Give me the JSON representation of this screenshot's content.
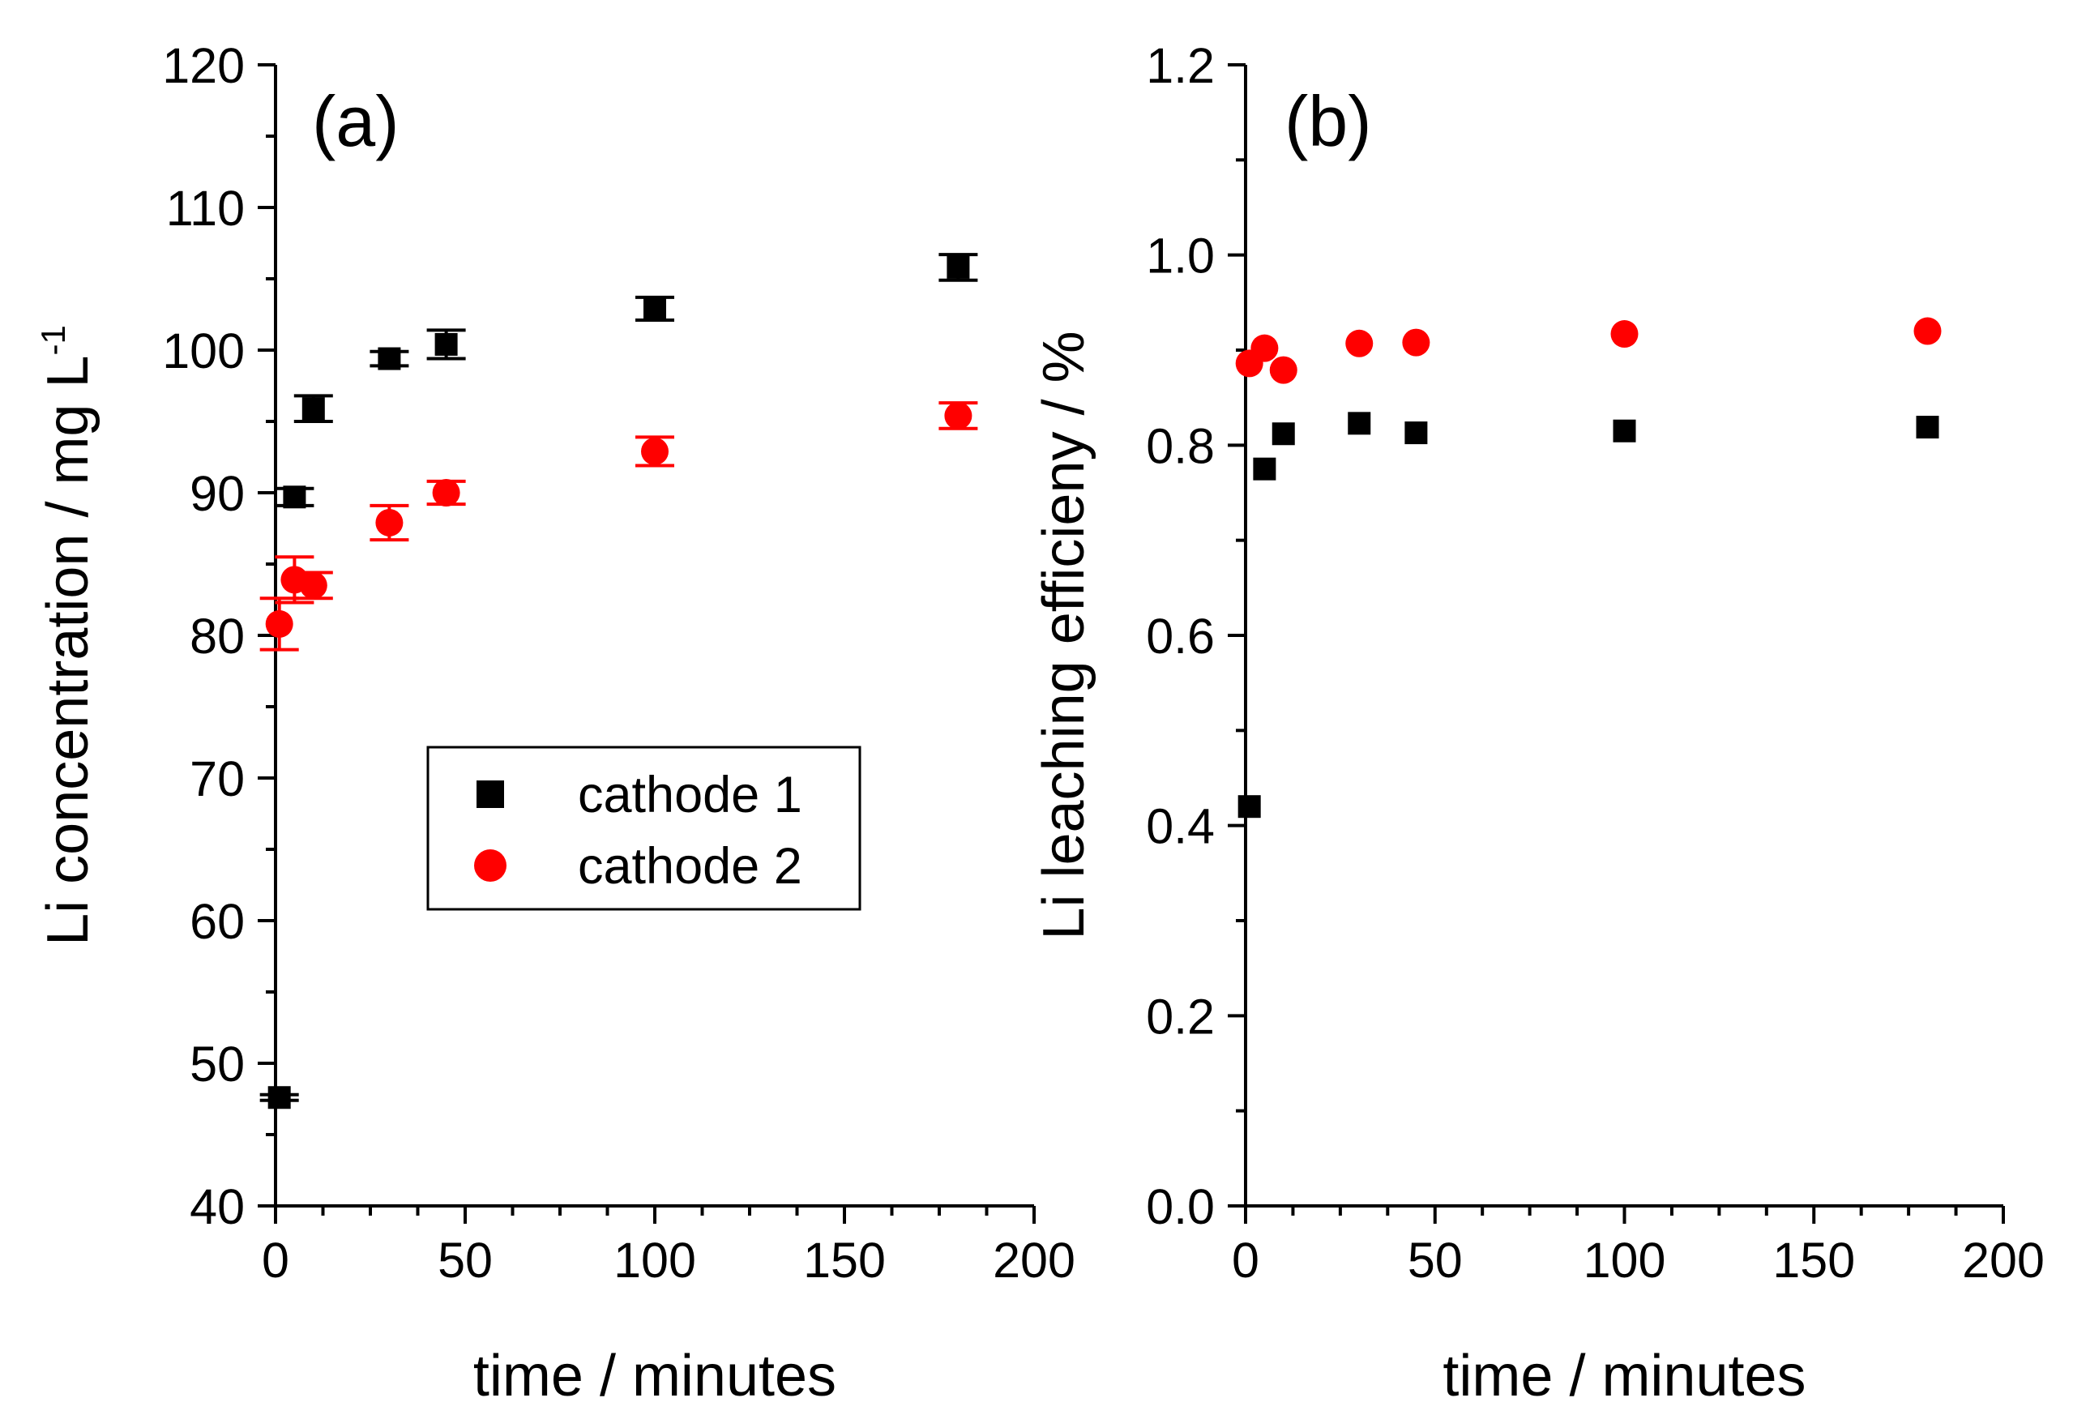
{
  "chart_data": [
    {
      "type": "scatter",
      "panel_label": "(a)",
      "xlabel": "time / minutes",
      "ylabel": "Li concentration / mg L",
      "ylabel_superscript": "-1",
      "xlim": [
        0,
        200
      ],
      "ylim": [
        40,
        120
      ],
      "xticks": [
        0,
        50,
        100,
        150,
        200
      ],
      "yticks": [
        40,
        50,
        60,
        70,
        80,
        90,
        100,
        110,
        120
      ],
      "x_minor_step": 12.5,
      "y_minor_step": 5,
      "x": [
        1,
        5,
        10,
        30,
        45,
        100,
        180
      ],
      "series": [
        {
          "name": "cathode 1",
          "marker": "square",
          "color": "#000000",
          "values": [
            47.6,
            89.7,
            95.9,
            99.4,
            100.4,
            102.9,
            105.8
          ],
          "errors": [
            0.2,
            0.6,
            0.9,
            0.5,
            1.0,
            0.8,
            0.9
          ]
        },
        {
          "name": "cathode 2",
          "marker": "circle",
          "color": "#ff0000",
          "values": [
            80.8,
            83.9,
            83.5,
            87.9,
            90.0,
            92.9,
            95.4
          ],
          "errors": [
            1.8,
            1.6,
            0.9,
            1.2,
            0.8,
            1.0,
            0.9
          ]
        }
      ],
      "legend": {
        "position": "center",
        "entries": [
          "cathode 1",
          "cathode 2"
        ]
      }
    },
    {
      "type": "scatter",
      "panel_label": "(b)",
      "xlabel": "time / minutes",
      "ylabel": "Li leaching efficieny / %",
      "xlim": [
        0,
        200
      ],
      "ylim": [
        0.0,
        1.2
      ],
      "xticks": [
        0,
        50,
        100,
        150,
        200
      ],
      "yticks": [
        "0.0",
        "0.2",
        "0.4",
        "0.6",
        "0.8",
        "1.0",
        "1.2"
      ],
      "x_minor_step": 12.5,
      "y_minor_step": 0.1,
      "x": [
        1,
        5,
        10,
        30,
        45,
        100,
        180
      ],
      "series": [
        {
          "name": "cathode 1",
          "marker": "square",
          "color": "#000000",
          "values": [
            0.42,
            0.775,
            0.812,
            0.823,
            0.813,
            0.815,
            0.819
          ]
        },
        {
          "name": "cathode 2",
          "marker": "circle",
          "color": "#ff0000",
          "values": [
            0.886,
            0.902,
            0.879,
            0.907,
            0.908,
            0.917,
            0.92
          ]
        }
      ]
    }
  ]
}
